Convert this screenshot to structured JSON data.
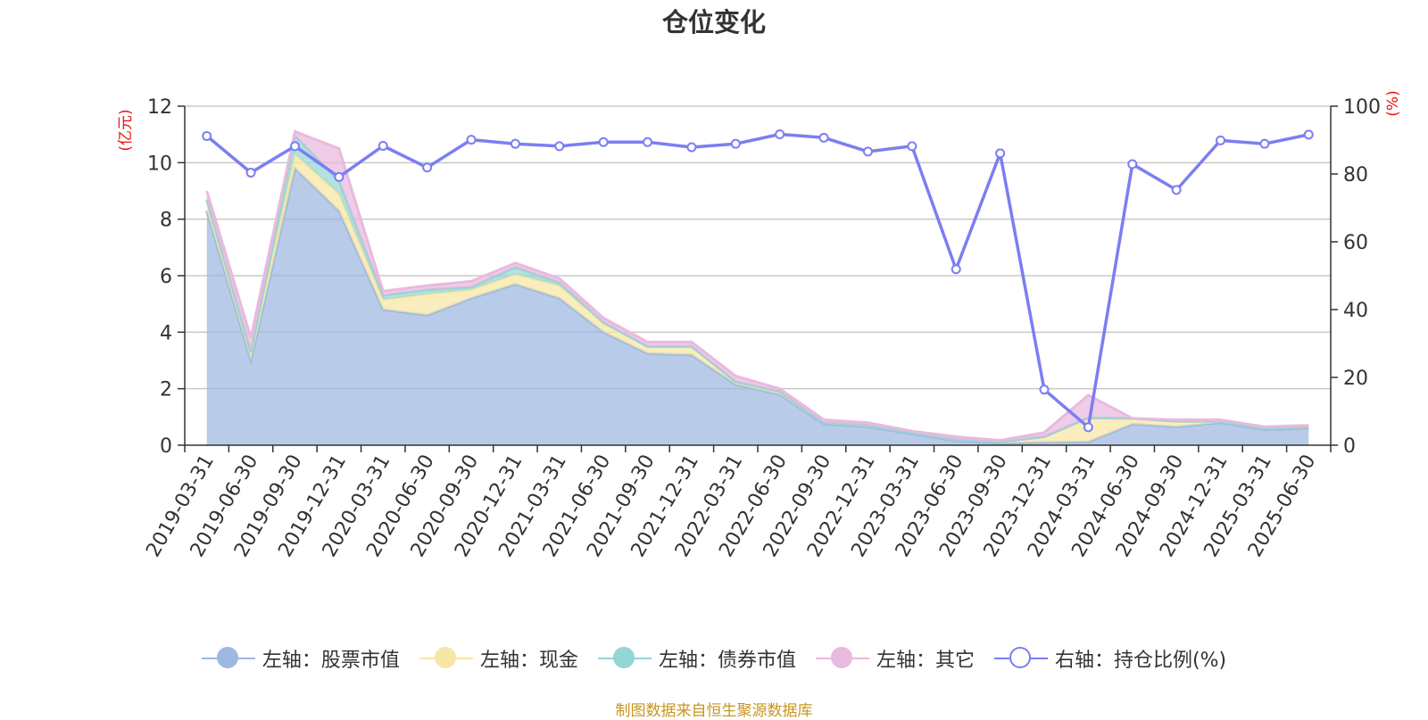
{
  "title": "仓位变化",
  "source_note": "制图数据来自恒生聚源数据库",
  "chart_data": {
    "type": "area",
    "categories": [
      "2019-03-31",
      "2019-06-30",
      "2019-09-30",
      "2019-12-31",
      "2020-03-31",
      "2020-06-30",
      "2020-09-30",
      "2020-12-31",
      "2021-03-31",
      "2021-06-30",
      "2021-09-30",
      "2021-12-31",
      "2022-03-31",
      "2022-06-30",
      "2022-09-30",
      "2022-12-31",
      "2023-03-31",
      "2023-06-30",
      "2023-09-30",
      "2023-12-31",
      "2024-03-31",
      "2024-06-30",
      "2024-09-30",
      "2024-12-31",
      "2025-03-31",
      "2025-06-30"
    ],
    "y_left": {
      "label": "(亿元)",
      "min": 0,
      "max": 12,
      "ticks": [
        0,
        2,
        4,
        6,
        8,
        10,
        12
      ],
      "tick_labels": [
        "0",
        "2",
        "4",
        "6",
        "8",
        "10",
        "12"
      ]
    },
    "y_right": {
      "label": "(%)",
      "min": 0,
      "max": 100,
      "ticks": [
        0,
        20,
        40,
        60,
        80,
        100
      ],
      "tick_labels": [
        "0",
        "20",
        "40",
        "60",
        "80",
        "100"
      ]
    },
    "grid": true,
    "legend_position": "bottom",
    "series": [
      {
        "name": "左轴：股票市值",
        "axis": "left",
        "kind": "area",
        "color": "#9db9e0",
        "values": [
          8.3,
          3.0,
          9.8,
          8.3,
          4.8,
          4.6,
          5.2,
          5.7,
          5.2,
          4.0,
          3.25,
          3.2,
          2.15,
          1.8,
          0.75,
          0.65,
          0.4,
          0.15,
          0.07,
          0.1,
          0.12,
          0.75,
          0.65,
          0.8,
          0.55,
          0.6
        ]
      },
      {
        "name": "左轴：现金",
        "axis": "left",
        "kind": "area",
        "color": "#f8e6a4",
        "values": [
          0.4,
          0.3,
          0.5,
          0.6,
          0.35,
          0.75,
          0.3,
          0.35,
          0.45,
          0.3,
          0.25,
          0.3,
          0.1,
          0.1,
          0.05,
          0.05,
          0.05,
          0.05,
          0.05,
          0.2,
          0.85,
          0.2,
          0.2,
          0.05,
          0.05,
          0.05
        ]
      },
      {
        "name": "左轴：债券市值",
        "axis": "left",
        "kind": "area",
        "color": "#94d5d5",
        "values": [
          0.0,
          0.0,
          0.65,
          0.45,
          0.15,
          0.15,
          0.1,
          0.25,
          0.1,
          0.05,
          0.0,
          0.0,
          0.0,
          0.0,
          0.0,
          0.0,
          0.0,
          0.0,
          0.0,
          0.0,
          0.0,
          0.0,
          0.0,
          0.0,
          0.0,
          0.0
        ]
      },
      {
        "name": "左轴：其它",
        "axis": "left",
        "kind": "area",
        "color": "#e9b9de",
        "values": [
          0.3,
          0.5,
          0.15,
          1.15,
          0.15,
          0.15,
          0.2,
          0.15,
          0.15,
          0.15,
          0.15,
          0.15,
          0.2,
          0.1,
          0.1,
          0.1,
          0.05,
          0.1,
          0.05,
          0.15,
          0.8,
          0.0,
          0.05,
          0.05,
          0.05,
          0.05
        ]
      },
      {
        "name": "右轴：持仓比例(%)",
        "axis": "right",
        "kind": "line",
        "color": "#7b7ef2",
        "values": [
          91.2,
          80.4,
          88.2,
          79.1,
          88.3,
          81.9,
          90.1,
          88.9,
          88.2,
          89.4,
          89.4,
          87.9,
          88.9,
          91.7,
          90.7,
          86.6,
          88.2,
          51.9,
          86.1,
          16.4,
          5.3,
          82.9,
          75.3,
          89.9,
          88.9,
          91.6
        ]
      }
    ]
  }
}
